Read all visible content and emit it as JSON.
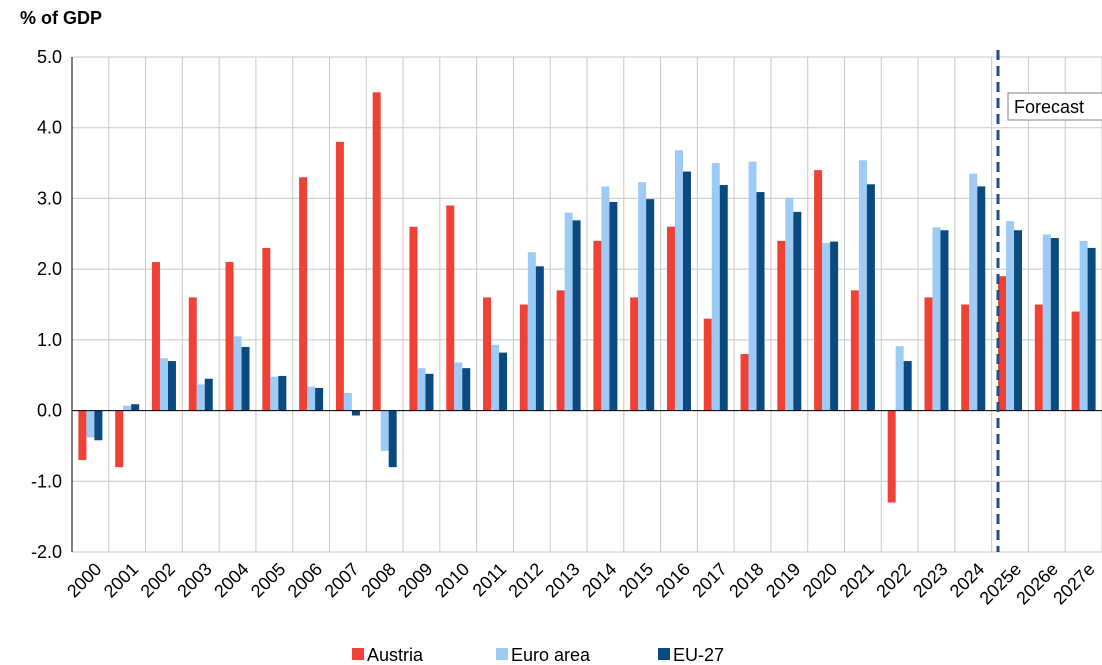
{
  "chart_data": {
    "type": "bar",
    "y_axis_label": "% of GDP",
    "annotation": "Forecast",
    "categories": [
      "2000",
      "2001",
      "2002",
      "2003",
      "2004",
      "2005",
      "2006",
      "2007",
      "2008",
      "2009",
      "2010",
      "2011",
      "2012",
      "2013",
      "2014",
      "2015",
      "2016",
      "2017",
      "2018",
      "2019",
      "2020",
      "2021",
      "2022",
      "2023",
      "2024",
      "2025e",
      "2026e",
      "2027e"
    ],
    "series": [
      {
        "name": "Austria",
        "color": "#ef4136",
        "values": [
          -0.7,
          -0.8,
          2.1,
          1.6,
          2.1,
          2.3,
          3.3,
          3.8,
          4.5,
          2.6,
          2.9,
          1.6,
          1.5,
          1.7,
          2.4,
          1.6,
          2.6,
          1.3,
          0.8,
          2.4,
          3.4,
          1.7,
          -1.3,
          1.6,
          1.5,
          1.9,
          1.5,
          1.4
        ]
      },
      {
        "name": "Euro area",
        "color": "#9dcbf5",
        "values": [
          -0.38,
          0.07,
          0.74,
          0.37,
          1.05,
          0.48,
          0.34,
          0.25,
          -0.57,
          0.6,
          0.68,
          0.93,
          2.24,
          2.8,
          3.17,
          3.23,
          3.68,
          3.5,
          3.52,
          3.01,
          2.37,
          3.54,
          0.91,
          2.59,
          3.35,
          2.68,
          2.49,
          2.4
        ]
      },
      {
        "name": "EU-27",
        "color": "#0b4a7f",
        "values": [
          -0.42,
          0.09,
          0.7,
          0.45,
          0.9,
          0.49,
          0.32,
          -0.07,
          -0.8,
          0.52,
          0.6,
          0.82,
          2.04,
          2.69,
          2.95,
          2.99,
          3.38,
          3.19,
          3.09,
          2.81,
          2.39,
          3.2,
          0.7,
          2.55,
          3.17,
          2.55,
          2.44,
          2.3
        ]
      }
    ],
    "ylim": [
      -2,
      5
    ],
    "yticks": [
      {
        "value": -2,
        "label": "-2.0"
      },
      {
        "value": -1,
        "label": "-1.0"
      },
      {
        "value": 0,
        "label": "0.0"
      },
      {
        "value": 1,
        "label": "1.0"
      },
      {
        "value": 2,
        "label": "2.0"
      },
      {
        "value": 3,
        "label": "3.0"
      },
      {
        "value": 4,
        "label": "4.0"
      },
      {
        "value": 5,
        "label": "5.0"
      }
    ],
    "grid": true
  }
}
